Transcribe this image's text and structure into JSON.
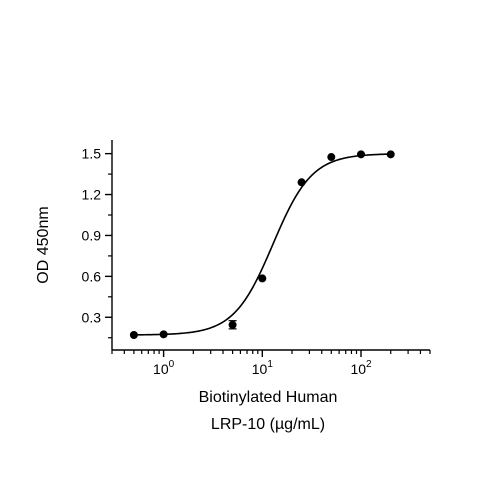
{
  "chart_data": {
    "type": "scatter",
    "title": "",
    "xlabel_lines": [
      "Biotinylated Human",
      "LRP-10 (µg/mL)"
    ],
    "ylabel": "OD 450nm",
    "x_scale": "log",
    "xlim": [
      0.3,
      500
    ],
    "ylim": [
      0.06,
      1.6
    ],
    "x_ticks": [
      {
        "value": 1,
        "base": "10",
        "exp": "0"
      },
      {
        "value": 10,
        "base": "10",
        "exp": "1"
      },
      {
        "value": 100,
        "base": "10",
        "exp": "2"
      }
    ],
    "y_ticks": [
      0.3,
      0.6,
      0.9,
      1.2,
      1.5
    ],
    "y_tick_labels": [
      "0.3",
      "0.6",
      "0.9",
      "1.2",
      "1.5"
    ],
    "series": [
      {
        "x": [
          0.5,
          1,
          5,
          10,
          25,
          50,
          100,
          200
        ],
        "y": [
          0.17,
          0.175,
          0.245,
          0.585,
          1.29,
          1.475,
          1.495,
          1.495
        ],
        "error": [
          0.005,
          0.005,
          0.03,
          0.01,
          0.01,
          0.01,
          0.005,
          0.005
        ],
        "fit": "4PL",
        "fit_params": {
          "bottom": 0.17,
          "top": 1.5,
          "ec50": 12.8,
          "hill": 2.2
        },
        "color": "#000000"
      }
    ],
    "grid": false,
    "legend": "none"
  }
}
